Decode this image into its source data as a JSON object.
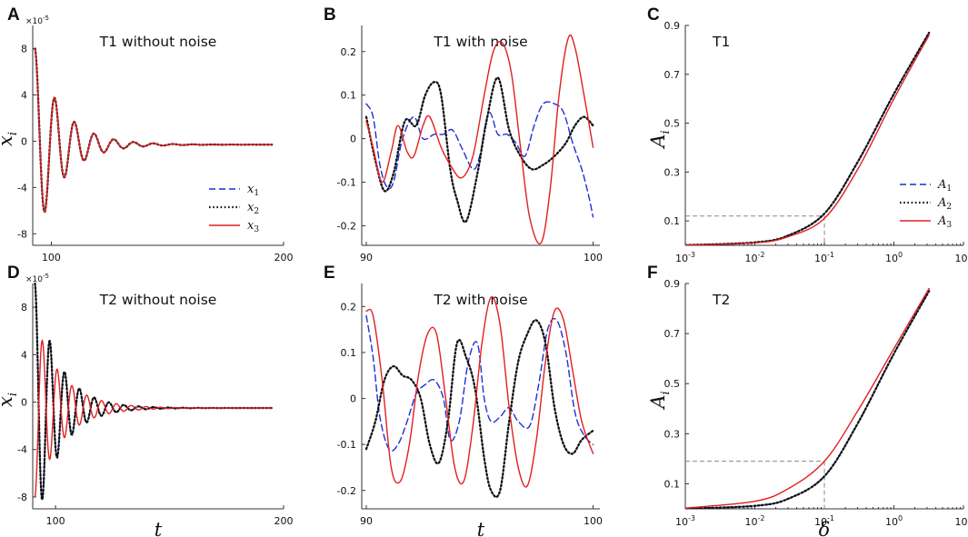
{
  "figure": {
    "colors": {
      "x1": "#1f2fd6",
      "x2": "#111111",
      "x3": "#e02020",
      "axis": "#333333",
      "guide": "#888888"
    },
    "styles": {
      "x1": "dashed",
      "x2": "dotted",
      "x3": "solid"
    }
  },
  "chart_data": [
    {
      "id": "A",
      "letter": "A",
      "type": "line",
      "title": "T1 without noise",
      "xlabel": "",
      "ylabel": "x",
      "ylabel_sub": "i",
      "exponent": "×10-5",
      "xlim": [
        92,
        200
      ],
      "ylim": [
        -9,
        10
      ],
      "xticks": [
        100,
        200
      ],
      "xticklabels": [
        "100",
        "200"
      ],
      "yticks": [
        -8,
        -4,
        0,
        4,
        8
      ],
      "yticklabels": [
        "-8",
        "-4",
        "0",
        "4",
        "8"
      ],
      "legend": {
        "position": "lower-right",
        "entries": [
          "x1",
          "x2",
          "x3"
        ]
      },
      "signals": [
        {
          "name": "x1",
          "t0": 93,
          "A": 8.3,
          "decay": 0.085,
          "period": 8.5,
          "phase": 0,
          "offset": -0.3
        },
        {
          "name": "x2",
          "t0": 93,
          "A": 8.3,
          "decay": 0.085,
          "period": 8.5,
          "phase": 0,
          "offset": -0.3
        },
        {
          "name": "x3",
          "t0": 93,
          "A": 8.3,
          "decay": 0.085,
          "period": 8.5,
          "phase": 0,
          "offset": -0.3
        }
      ]
    },
    {
      "id": "B",
      "letter": "B",
      "type": "line",
      "title": "T1 with noise",
      "xlabel": "",
      "ylabel": "",
      "xlim": [
        89.8,
        100.3
      ],
      "ylim": [
        -0.245,
        0.26
      ],
      "xticks": [
        90,
        100
      ],
      "xticklabels": [
        "90",
        "100"
      ],
      "yticks": [
        -0.2,
        -0.1,
        0,
        0.1,
        0.2
      ],
      "yticklabels": [
        "-0.2",
        "-0.1",
        "0",
        "0.1",
        "0.2"
      ],
      "series": [
        {
          "name": "x1",
          "x": [
            90,
            90.3,
            90.6,
            90.9,
            91.2,
            91.6,
            92.1,
            92.5,
            93,
            93.4,
            93.8,
            94.2,
            94.7,
            95,
            95.4,
            95.8,
            96.2,
            96.6,
            97,
            97.4,
            97.8,
            98.3,
            98.7,
            99.1,
            99.5,
            99.8,
            100
          ],
          "y": [
            0.08,
            0.05,
            -0.06,
            -0.11,
            -0.1,
            0.0,
            0.05,
            0.0,
            0.01,
            0.01,
            0.02,
            -0.02,
            -0.07,
            -0.04,
            0.06,
            0.01,
            0.01,
            -0.01,
            -0.04,
            0.03,
            0.08,
            0.08,
            0.06,
            -0.01,
            -0.07,
            -0.13,
            -0.18
          ]
        },
        {
          "name": "x2",
          "x": [
            90,
            90.4,
            90.8,
            91.2,
            91.7,
            92.2,
            92.6,
            93,
            93.3,
            93.7,
            94,
            94.4,
            94.9,
            95.3,
            95.8,
            96.3,
            96.8,
            97.3,
            97.8,
            98.3,
            98.8,
            99.2,
            99.6,
            100
          ],
          "y": [
            0.05,
            -0.05,
            -0.12,
            -0.08,
            0.04,
            0.03,
            0.1,
            0.13,
            0.1,
            -0.07,
            -0.14,
            -0.19,
            -0.08,
            0.04,
            0.14,
            0.02,
            -0.04,
            -0.07,
            -0.06,
            -0.04,
            -0.01,
            0.03,
            0.05,
            0.03
          ]
        },
        {
          "name": "x3",
          "x": [
            90,
            90.3,
            90.7,
            91.1,
            91.4,
            91.8,
            92.1,
            92.5,
            92.8,
            93.3,
            93.7,
            94.2,
            94.7,
            95.2,
            95.6,
            96,
            96.4,
            96.8,
            97.2,
            97.7,
            98.1,
            98.5,
            98.9,
            99.2,
            99.6,
            100
          ],
          "y": [
            0.04,
            -0.02,
            -0.1,
            -0.03,
            0.03,
            -0.03,
            -0.04,
            0.03,
            0.05,
            -0.02,
            -0.06,
            -0.09,
            -0.04,
            0.1,
            0.2,
            0.22,
            0.15,
            -0.02,
            -0.18,
            -0.24,
            -0.12,
            0.1,
            0.23,
            0.21,
            0.1,
            -0.02
          ]
        }
      ]
    },
    {
      "id": "C",
      "letter": "C",
      "type": "line",
      "title": "T1",
      "xlabel": "",
      "ylabel": "A",
      "ylabel_sub": "i",
      "xscale": "log",
      "xlim": [
        0.001,
        10
      ],
      "ylim": [
        0,
        0.9
      ],
      "xticks": [
        0.001,
        0.01,
        0.1,
        1,
        10
      ],
      "xticklabels": [
        {
          "base": "10",
          "exp": "-3"
        },
        {
          "base": "10",
          "exp": "-2"
        },
        {
          "base": "10",
          "exp": "-1"
        },
        {
          "base": "10",
          "exp": "0"
        },
        {
          "base": "10",
          "exp": "1"
        }
      ],
      "yticks": [
        0.1,
        0.3,
        0.5,
        0.7,
        0.9
      ],
      "yticklabels": [
        "0.1",
        "0.3",
        "0.5",
        "0.7",
        "0.9"
      ],
      "guide": {
        "x": 0.1,
        "y": 0.12
      },
      "legend": {
        "position": "lower-right",
        "entries": [
          "A1",
          "A2",
          "A3"
        ]
      },
      "series": [
        {
          "name": "A1",
          "x": [
            0.001,
            0.01,
            0.03,
            0.1,
            0.3,
            1,
            3.2
          ],
          "y": [
            0.001,
            0.012,
            0.04,
            0.13,
            0.34,
            0.62,
            0.87
          ]
        },
        {
          "name": "A2",
          "x": [
            0.001,
            0.01,
            0.03,
            0.1,
            0.3,
            1,
            3.2
          ],
          "y": [
            0.001,
            0.012,
            0.04,
            0.13,
            0.34,
            0.62,
            0.87
          ]
        },
        {
          "name": "A3",
          "x": [
            0.001,
            0.01,
            0.03,
            0.1,
            0.3,
            1,
            3.2
          ],
          "y": [
            0.001,
            0.01,
            0.035,
            0.11,
            0.31,
            0.6,
            0.86
          ]
        }
      ]
    },
    {
      "id": "D",
      "letter": "D",
      "type": "line",
      "title": "T2 without noise",
      "xlabel": "t",
      "ylabel": "x",
      "ylabel_sub": "i",
      "exponent": "×10-5",
      "xlim": [
        90,
        200
      ],
      "ylim": [
        -9,
        10
      ],
      "xticks": [
        100,
        200
      ],
      "xticklabels": [
        "100",
        "200"
      ],
      "yticks": [
        -8,
        -4,
        0,
        4,
        8
      ],
      "yticklabels": [
        "-8",
        "-4",
        "0",
        "4",
        "8"
      ],
      "signals": [
        {
          "name": "x1",
          "t0": 91,
          "A": 10.5,
          "decay": 0.095,
          "period": 6.5,
          "phase": 0,
          "offset": -0.5
        },
        {
          "name": "x2",
          "t0": 91,
          "A": 10.5,
          "decay": 0.095,
          "period": 6.5,
          "phase": 0,
          "offset": -0.5
        },
        {
          "name": "x3",
          "t0": 91,
          "A": -7.5,
          "decay": 0.085,
          "period": 6.5,
          "phase": 0,
          "offset": -0.5
        }
      ]
    },
    {
      "id": "E",
      "letter": "E",
      "type": "line",
      "title": "T2 with noise",
      "xlabel": "t",
      "ylabel": "",
      "xlim": [
        89.8,
        100.3
      ],
      "ylim": [
        -0.24,
        0.25
      ],
      "xticks": [
        90,
        100
      ],
      "xticklabels": [
        "90",
        "100"
      ],
      "yticks": [
        -0.2,
        -0.1,
        0,
        0.1,
        0.2
      ],
      "yticklabels": [
        "-0.2",
        "-0.1",
        "0",
        "0.1",
        "0.2"
      ],
      "series": [
        {
          "name": "x1",
          "x": [
            90,
            90.3,
            90.6,
            91,
            91.4,
            91.8,
            92.2,
            92.6,
            93,
            93.4,
            93.7,
            94.1,
            94.5,
            94.9,
            95.2,
            95.5,
            95.9,
            96.3,
            96.7,
            97.2,
            97.6,
            98,
            98.4,
            98.8,
            99.2,
            99.6,
            100
          ],
          "y": [
            0.18,
            0.09,
            -0.04,
            -0.11,
            -0.1,
            -0.05,
            0.01,
            0.03,
            0.04,
            0.0,
            -0.09,
            -0.05,
            0.08,
            0.12,
            0.0,
            -0.05,
            -0.04,
            -0.02,
            -0.05,
            -0.06,
            0.03,
            0.15,
            0.17,
            0.1,
            -0.03,
            -0.08,
            -0.1
          ]
        },
        {
          "name": "x2",
          "x": [
            90,
            90.4,
            90.8,
            91.2,
            91.6,
            92,
            92.4,
            92.8,
            93.2,
            93.6,
            94,
            94.4,
            94.8,
            95.2,
            95.5,
            95.9,
            96.3,
            96.7,
            97.1,
            97.5,
            97.9,
            98.3,
            98.7,
            99.1,
            99.5,
            100
          ],
          "y": [
            -0.11,
            -0.05,
            0.04,
            0.07,
            0.05,
            0.04,
            0.0,
            -0.1,
            -0.14,
            -0.05,
            0.12,
            0.09,
            0.02,
            -0.13,
            -0.2,
            -0.2,
            -0.05,
            0.08,
            0.14,
            0.17,
            0.12,
            -0.02,
            -0.1,
            -0.12,
            -0.09,
            -0.07
          ]
        },
        {
          "name": "x3",
          "x": [
            90,
            90.3,
            90.7,
            91.1,
            91.5,
            91.9,
            92.3,
            92.7,
            93.1,
            93.5,
            93.9,
            94.3,
            94.7,
            95.1,
            95.5,
            95.9,
            96.3,
            96.7,
            97.1,
            97.5,
            97.9,
            98.3,
            98.7,
            99.1,
            99.5,
            100
          ],
          "y": [
            0.19,
            0.18,
            0.04,
            -0.15,
            -0.18,
            -0.1,
            0.05,
            0.14,
            0.14,
            0.0,
            -0.15,
            -0.18,
            -0.06,
            0.12,
            0.22,
            0.16,
            -0.02,
            -0.15,
            -0.19,
            -0.09,
            0.08,
            0.19,
            0.17,
            0.06,
            -0.05,
            -0.12
          ]
        }
      ]
    },
    {
      "id": "F",
      "letter": "F",
      "type": "line",
      "title": "T2",
      "xlabel": "δ",
      "ylabel": "A",
      "ylabel_sub": "i",
      "xscale": "log",
      "xlim": [
        0.001,
        10
      ],
      "ylim": [
        0,
        0.9
      ],
      "xticks": [
        0.001,
        0.01,
        0.1,
        1,
        10
      ],
      "xticklabels": [
        {
          "base": "10",
          "exp": "-3"
        },
        {
          "base": "10",
          "exp": "-2"
        },
        {
          "base": "10",
          "exp": "-1"
        },
        {
          "base": "10",
          "exp": "0"
        },
        {
          "base": "10",
          "exp": "1"
        }
      ],
      "yticks": [
        0.1,
        0.3,
        0.5,
        0.7,
        0.9
      ],
      "yticklabels": [
        "0.1",
        "0.3",
        "0.5",
        "0.7",
        "0.9"
      ],
      "guide": {
        "x": 0.1,
        "y": 0.19
      },
      "series": [
        {
          "name": "A1",
          "x": [
            0.001,
            0.01,
            0.03,
            0.1,
            0.3,
            1,
            3.2
          ],
          "y": [
            0.001,
            0.012,
            0.04,
            0.13,
            0.34,
            0.62,
            0.87
          ]
        },
        {
          "name": "A2",
          "x": [
            0.001,
            0.01,
            0.03,
            0.1,
            0.3,
            1,
            3.2
          ],
          "y": [
            0.001,
            0.012,
            0.04,
            0.13,
            0.34,
            0.62,
            0.87
          ]
        },
        {
          "name": "A3",
          "x": [
            0.001,
            0.01,
            0.03,
            0.1,
            0.3,
            1,
            3.2
          ],
          "y": [
            0.003,
            0.03,
            0.08,
            0.19,
            0.39,
            0.64,
            0.88
          ]
        }
      ]
    }
  ],
  "legends": {
    "A": [
      {
        "key": "x1",
        "label": "x",
        "sub": "1"
      },
      {
        "key": "x2",
        "label": "x",
        "sub": "2"
      },
      {
        "key": "x3",
        "label": "x",
        "sub": "3"
      }
    ],
    "C": [
      {
        "key": "x1",
        "label": "A",
        "sub": "1"
      },
      {
        "key": "x2",
        "label": "A",
        "sub": "2"
      },
      {
        "key": "x3",
        "label": "A",
        "sub": "3"
      }
    ]
  }
}
